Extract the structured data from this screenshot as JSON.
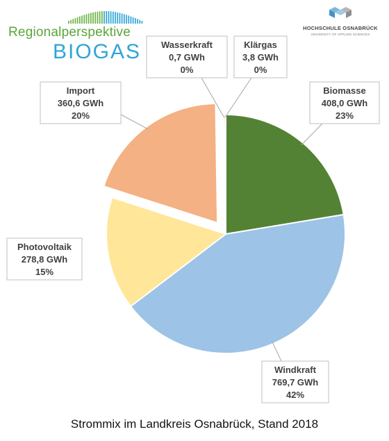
{
  "logos": {
    "left_brand_top": "Regionalperspektive",
    "left_brand_bottom": "BIOGAS",
    "right_name": "HOCHSCHULE OSNABRÜCK",
    "right_sub": "UNIVERSITY OF APPLIED SCIENCES"
  },
  "caption": "Strommix im Landkreis Osnabrück, Stand 2018",
  "chart_data": {
    "type": "pie",
    "title": "Strommix im Landkreis Osnabrück, Stand 2018",
    "unit": "GWh",
    "slices": [
      {
        "name": "Biomasse",
        "value": 408.0,
        "value_label": "408,0 GWh",
        "percent_label": "23%",
        "color": "#548235",
        "exploded": false
      },
      {
        "name": "Windkraft",
        "value": 769.7,
        "value_label": "769,7 GWh",
        "percent_label": "42%",
        "color": "#9dc3e6",
        "exploded": false
      },
      {
        "name": "Photovoltaik",
        "value": 278.8,
        "value_label": "278,8 GWh",
        "percent_label": "15%",
        "color": "#ffe699",
        "exploded": false
      },
      {
        "name": "Import",
        "value": 360.6,
        "value_label": "360,6 GWh",
        "percent_label": "20%",
        "color": "#f4b183",
        "exploded": true
      },
      {
        "name": "Wasserkraft",
        "value": 0.7,
        "value_label": "0,7 GWh",
        "percent_label": "0%",
        "color": "#bfbfbf",
        "exploded": false
      },
      {
        "name": "Klärgas",
        "value": 3.8,
        "value_label": "3,8 GWh",
        "percent_label": "0%",
        "color": "#a5a5a5",
        "exploded": false
      }
    ]
  }
}
